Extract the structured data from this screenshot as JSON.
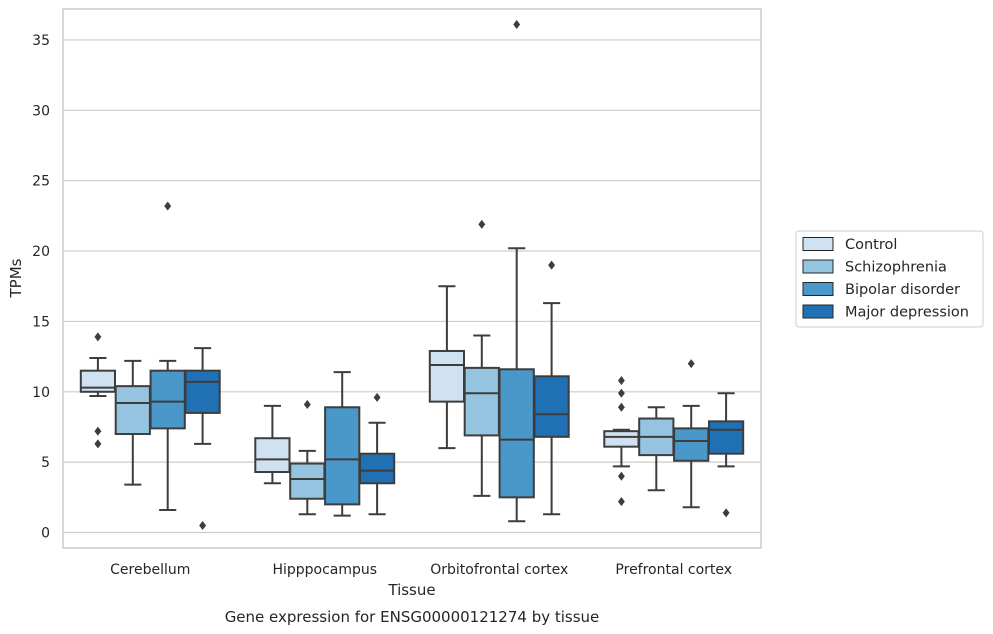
{
  "chart_data": {
    "type": "box",
    "title": "",
    "caption": "Gene expression for ENSG00000121274 by tissue",
    "xlabel": "Tissue",
    "ylabel": "TPMs",
    "ylim": [
      -1.1,
      37.2
    ],
    "yticks": [
      0,
      5,
      10,
      15,
      20,
      25,
      30,
      35
    ],
    "grid": true,
    "legend_position": "right",
    "categories": [
      "Cerebellum",
      "Hipppocampus",
      "Orbitofrontal cortex",
      "Prefrontal cortex"
    ],
    "series": [
      {
        "name": "Control",
        "color": "#d0e1f2",
        "boxes": [
          {
            "whisker_low": 9.7,
            "q1": 10.0,
            "median": 10.3,
            "q3": 11.5,
            "whisker_high": 12.4,
            "outliers": [
              13.9,
              7.2,
              6.3
            ]
          },
          {
            "whisker_low": 3.5,
            "q1": 4.3,
            "median": 5.2,
            "q3": 6.7,
            "whisker_high": 9.0,
            "outliers": []
          },
          {
            "whisker_low": 6.0,
            "q1": 9.3,
            "median": 11.9,
            "q3": 12.9,
            "whisker_high": 17.5,
            "outliers": []
          },
          {
            "whisker_low": 4.7,
            "q1": 6.1,
            "median": 6.8,
            "q3": 7.2,
            "whisker_high": 7.3,
            "outliers": [
              10.8,
              9.9,
              8.9,
              4.0,
              2.2
            ]
          }
        ]
      },
      {
        "name": "Schizophrenia",
        "color": "#94c4df",
        "boxes": [
          {
            "whisker_low": 3.4,
            "q1": 7.0,
            "median": 9.2,
            "q3": 10.4,
            "whisker_high": 12.2,
            "outliers": []
          },
          {
            "whisker_low": 1.3,
            "q1": 2.4,
            "median": 3.8,
            "q3": 4.9,
            "whisker_high": 5.8,
            "outliers": [
              9.1
            ]
          },
          {
            "whisker_low": 2.6,
            "q1": 6.9,
            "median": 9.9,
            "q3": 11.7,
            "whisker_high": 14.0,
            "outliers": [
              21.9
            ]
          },
          {
            "whisker_low": 3.0,
            "q1": 5.5,
            "median": 6.8,
            "q3": 8.1,
            "whisker_high": 8.9,
            "outliers": []
          }
        ]
      },
      {
        "name": "Bipolar disorder",
        "color": "#4a98c9",
        "boxes": [
          {
            "whisker_low": 1.6,
            "q1": 7.4,
            "median": 9.3,
            "q3": 11.5,
            "whisker_high": 12.2,
            "outliers": [
              23.2
            ]
          },
          {
            "whisker_low": 1.2,
            "q1": 2.0,
            "median": 5.2,
            "q3": 8.9,
            "whisker_high": 11.4,
            "outliers": []
          },
          {
            "whisker_low": 0.8,
            "q1": 2.5,
            "median": 6.6,
            "q3": 11.6,
            "whisker_high": 20.2,
            "outliers": [
              36.1
            ]
          },
          {
            "whisker_low": 1.8,
            "q1": 5.1,
            "median": 6.5,
            "q3": 7.4,
            "whisker_high": 9.0,
            "outliers": [
              12.0
            ]
          }
        ]
      },
      {
        "name": "Major depression",
        "color": "#2070b4",
        "boxes": [
          {
            "whisker_low": 6.3,
            "q1": 8.5,
            "median": 10.7,
            "q3": 11.5,
            "whisker_high": 13.1,
            "outliers": [
              0.5
            ]
          },
          {
            "whisker_low": 1.3,
            "q1": 3.5,
            "median": 4.4,
            "q3": 5.6,
            "whisker_high": 7.8,
            "outliers": [
              9.6
            ]
          },
          {
            "whisker_low": 1.3,
            "q1": 6.8,
            "median": 8.4,
            "q3": 11.1,
            "whisker_high": 16.3,
            "outliers": [
              19.0
            ]
          },
          {
            "whisker_low": 4.7,
            "q1": 5.6,
            "median": 7.3,
            "q3": 7.9,
            "whisker_high": 9.9,
            "outliers": [
              1.4
            ]
          }
        ]
      }
    ],
    "edge_color": "#3d3d3d",
    "grid_color": "#cccccc"
  }
}
